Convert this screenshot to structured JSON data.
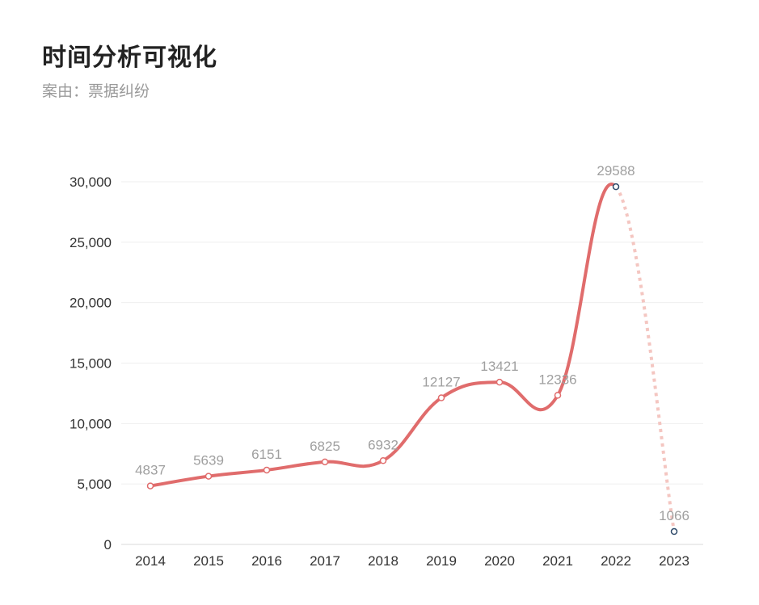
{
  "header": {
    "title": "时间分析可视化",
    "subtitle_prefix": "案由：",
    "subtitle_value": "票据纠纷"
  },
  "chart_data": {
    "type": "line",
    "smooth": true,
    "title": "时间分析可视化",
    "subtitle": "案由：票据纠纷",
    "categories": [
      "2014",
      "2015",
      "2016",
      "2017",
      "2018",
      "2019",
      "2020",
      "2021",
      "2022",
      "2023"
    ],
    "series": [
      {
        "values": [
          4837,
          5639,
          6151,
          6825,
          6932,
          12127,
          13421,
          12336,
          29588,
          1066
        ]
      }
    ],
    "solid_segment_end_index": 8,
    "dashed_last_segment": true,
    "ylim": [
      0,
      30000
    ],
    "yticks": [
      0,
      5000,
      10000,
      15000,
      20000,
      25000,
      30000
    ],
    "ytick_labels": [
      "0",
      "5,000",
      "10,000",
      "15,000",
      "20,000",
      "25,000",
      "30,000"
    ],
    "grid": true,
    "colors": {
      "line": "#e06c6c",
      "dashed_line": "#f4c6c1",
      "highlight_point": "#2f4b6b",
      "data_label": "#a0a0a0",
      "grid": "#efefef"
    }
  }
}
